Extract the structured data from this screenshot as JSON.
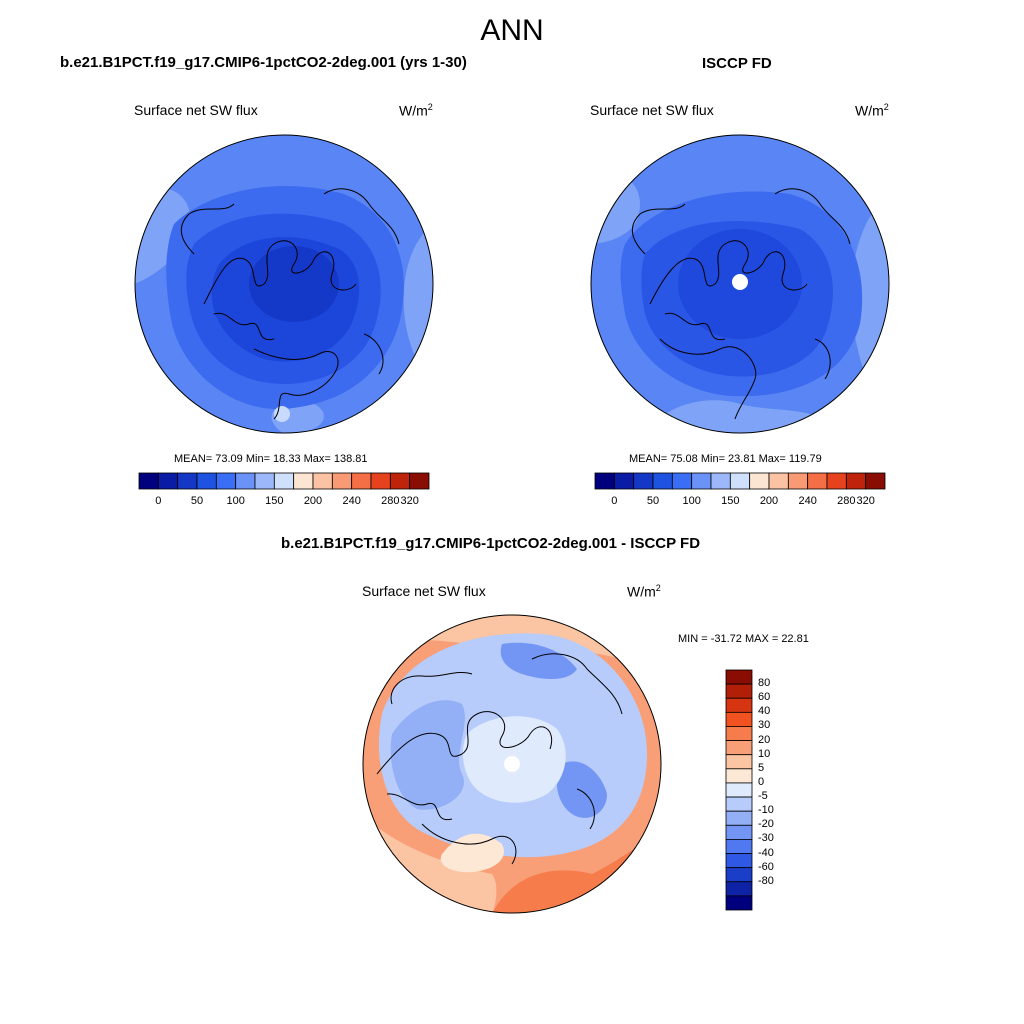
{
  "page": {
    "title": "ANN"
  },
  "panels": [
    {
      "id": "model",
      "case_title": "b.e21.B1PCT.f19_g17.CMIP6-1pctCO2-2deg.001 (yrs 1-30)",
      "variable": "Surface net SW flux",
      "units_base": "W/m",
      "units_exp": "2",
      "stats_text": "MEAN=  73.09  Min=  18.33  Max= 138.81"
    },
    {
      "id": "obs",
      "case_title": "ISCCP FD",
      "variable": "Surface net SW flux",
      "units_base": "W/m",
      "units_exp": "2",
      "stats_text": "MEAN=  75.08  Min=  23.81  Max= 119.79"
    },
    {
      "id": "diff",
      "case_title": "b.e21.B1PCT.f19_g17.CMIP6-1pctCO2-2deg.001 - ISCCP FD",
      "variable": "Surface net SW flux",
      "units_base": "W/m",
      "units_exp": "2",
      "stats_text": "MIN = -31.72 MAX =  22.81"
    }
  ],
  "colorbars": {
    "abs": {
      "colors": [
        "#00007e",
        "#0a1ca6",
        "#1437c6",
        "#1e52e0",
        "#3a6ef5",
        "#6a92f7",
        "#9cb8fa",
        "#cfe0fd",
        "#fde5d3",
        "#fbc2a3",
        "#f89a73",
        "#f46e46",
        "#e6421d",
        "#bf230b",
        "#8a0d03"
      ],
      "labels": [
        "0",
        "50",
        "100",
        "150",
        "200",
        "240",
        "280",
        "320"
      ]
    },
    "diff": {
      "colors": [
        "#8a0d03",
        "#b21f08",
        "#d63512",
        "#f2521f",
        "#f67c4c",
        "#f89f78",
        "#fbc4a3",
        "#fde8d6",
        "#dfeafd",
        "#b7ccfa",
        "#93b0f7",
        "#7396f5",
        "#4f78f1",
        "#2f59e4",
        "#1b3ec8",
        "#0d22a4",
        "#00007e"
      ],
      "labels": [
        "80",
        "60",
        "40",
        "30",
        "20",
        "10",
        "5",
        "0",
        "-5",
        "-10",
        "-20",
        "-30",
        "-40",
        "-60",
        "-80"
      ]
    }
  }
}
